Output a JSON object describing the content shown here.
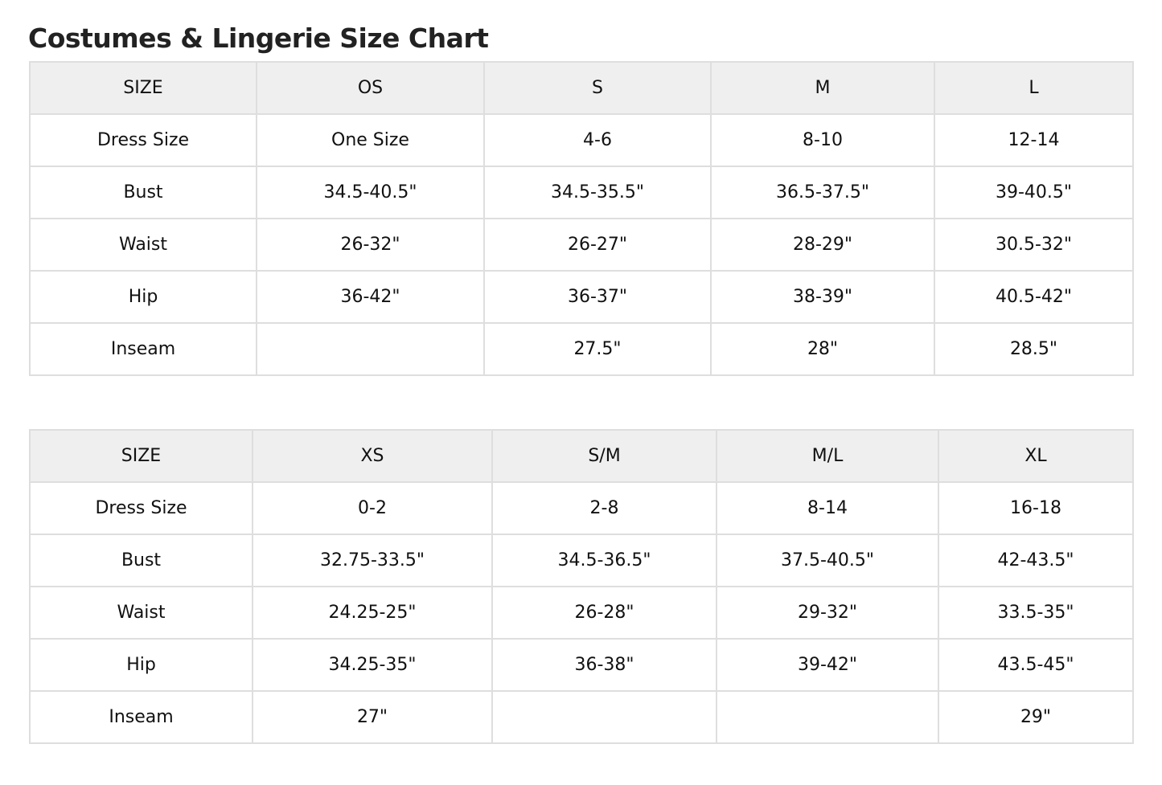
{
  "title": "Costumes & Lingerie Size Chart",
  "tables": [
    {
      "header": [
        "SIZE",
        "OS",
        "S",
        "M",
        "L"
      ],
      "rows": [
        [
          "Dress Size",
          "One Size",
          "4-6",
          "8-10",
          "12-14"
        ],
        [
          "Bust",
          "34.5-40.5\"",
          "34.5-35.5\"",
          "36.5-37.5\"",
          "39-40.5\""
        ],
        [
          "Waist",
          "26-32\"",
          "26-27\"",
          "28-29\"",
          "30.5-32\""
        ],
        [
          "Hip",
          "36-42\"",
          "36-37\"",
          "38-39\"",
          "40.5-42\""
        ],
        [
          "Inseam",
          "",
          "27.5\"",
          "28\"",
          "28.5\""
        ]
      ]
    },
    {
      "header": [
        "SIZE",
        "XS",
        "S/M",
        "M/L",
        "XL"
      ],
      "rows": [
        [
          "Dress Size",
          "0-2",
          "2-8",
          "8-14",
          "16-18"
        ],
        [
          "Bust",
          "32.75-33.5\"",
          "34.5-36.5\"",
          "37.5-40.5\"",
          "42-43.5\""
        ],
        [
          "Waist",
          "24.25-25\"",
          "26-28\"",
          "29-32\"",
          "33.5-35\""
        ],
        [
          "Hip",
          "34.25-35\"",
          "36-38\"",
          "39-42\"",
          "43.5-45\""
        ],
        [
          "Inseam",
          "27\"",
          "",
          "",
          "29\""
        ]
      ]
    }
  ],
  "colors": {
    "header_bg": "#efefef",
    "border": "#dedede"
  }
}
